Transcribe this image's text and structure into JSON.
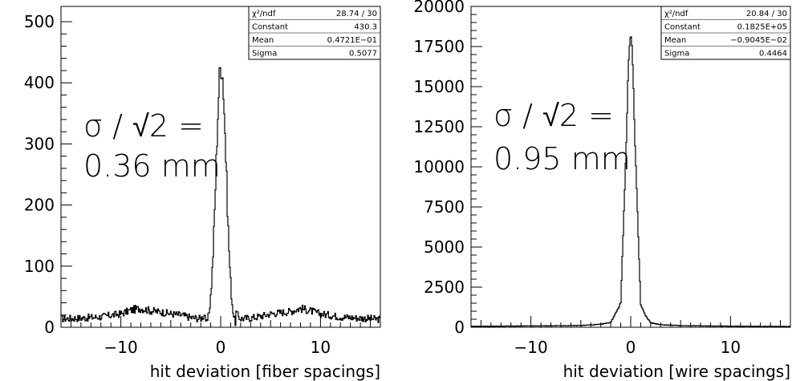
{
  "chart_data": [
    {
      "type": "line",
      "title": "",
      "xlabel": "hit deviation [fiber spacings]",
      "ylabel": "",
      "xlim": [
        -16,
        16
      ],
      "ylim": [
        0,
        525
      ],
      "x_ticks": [
        -10,
        0,
        10
      ],
      "x_tick_labels": [
        "−10",
        "0",
        "10"
      ],
      "y_ticks": [
        0,
        100,
        200,
        300,
        400,
        500
      ],
      "y_tick_labels": [
        "0",
        "100",
        "200",
        "300",
        "400",
        "500"
      ],
      "grid": false,
      "annotation": {
        "line1": "σ / √2 =",
        "line2": "0.36 mm"
      },
      "stats": [
        {
          "label": "χ²/ndf",
          "value": "28.74   /   30"
        },
        {
          "label": "Constant",
          "value": "430.3"
        },
        {
          "label": "Mean",
          "value": "0.4721E−01"
        },
        {
          "label": "Sigma",
          "value": "0.5077"
        }
      ],
      "gaussian": {
        "constant": 430.3,
        "mean": 0.04721,
        "sigma": 0.5077
      },
      "series": [
        {
          "x": [
            -16,
            -14,
            -12,
            -10,
            -9,
            -8,
            -7,
            -6,
            -5,
            -4,
            -3,
            -2,
            -1.5,
            -1,
            -0.5,
            0,
            0.5,
            1,
            1.5,
            2,
            3,
            4,
            5,
            6,
            7,
            8,
            9,
            10,
            12,
            14,
            16
          ],
          "values": [
            14,
            15,
            17,
            22,
            28,
            31,
            27,
            25,
            22,
            20,
            16,
            14,
            20,
            80,
            260,
            465,
            240,
            70,
            20,
            14,
            15,
            18,
            22,
            24,
            26,
            31,
            27,
            22,
            17,
            15,
            13
          ]
        }
      ]
    },
    {
      "type": "line",
      "title": "",
      "xlabel": "hit deviation [wire spacings]",
      "ylabel": "",
      "xlim": [
        -16,
        16
      ],
      "ylim": [
        0,
        20000
      ],
      "x_ticks": [
        -10,
        0,
        10
      ],
      "x_tick_labels": [
        "−10",
        "0",
        "10"
      ],
      "y_ticks": [
        0,
        2500,
        5000,
        7500,
        10000,
        12500,
        15000,
        17500,
        20000
      ],
      "y_tick_labels": [
        "0",
        "2500",
        "5000",
        "7500",
        "10000",
        "12500",
        "15000",
        "17500",
        "20000"
      ],
      "grid": false,
      "annotation": {
        "line1": "σ / √2 =",
        "line2": "0.95 mm"
      },
      "stats": [
        {
          "label": "χ²/ndf",
          "value": "20.84   /   30"
        },
        {
          "label": "Constant",
          "value": "0.1825E+05"
        },
        {
          "label": "Mean",
          "value": "−0.9045E−02"
        },
        {
          "label": "Sigma",
          "value": "0.4464"
        }
      ],
      "gaussian": {
        "constant": 18250,
        "mean": -0.009045,
        "sigma": 0.4464
      },
      "series": [
        {
          "x": [
            -16,
            -10,
            -5,
            -3,
            -2,
            -1.5,
            -1,
            -0.5,
            0,
            0.5,
            1,
            1.5,
            2,
            3,
            5,
            10,
            16
          ],
          "values": [
            60,
            80,
            110,
            180,
            300,
            900,
            1500,
            10500,
            18250,
            10300,
            1400,
            700,
            280,
            160,
            100,
            70,
            50
          ]
        }
      ]
    }
  ]
}
